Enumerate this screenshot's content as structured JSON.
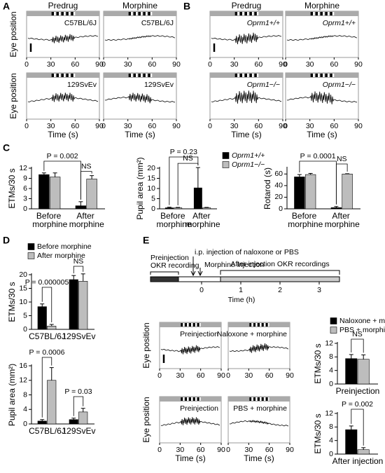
{
  "panels": [
    "A",
    "B",
    "C",
    "D",
    "E"
  ],
  "traces": [
    {
      "headers": [
        "Predrug",
        "Morphine"
      ],
      "labels": [
        "C57BL/6J",
        "C57BL/6J",
        "129SvEv",
        "129SvEv"
      ],
      "ylabel": "Eye position",
      "xlabel": "Time (s)",
      "xlim": [
        0,
        90
      ],
      "xticks": [
        0,
        30,
        60,
        90
      ]
    },
    {
      "headers": [
        "Predrug",
        "Morphine"
      ],
      "labels": [
        "Oprm1+/+",
        "Oprm1+/+",
        "Oprm1−/−",
        "Oprm1−/−"
      ],
      "xlabel": "Time (s)",
      "xlim": [
        0,
        90
      ],
      "xticks": [
        0,
        30,
        60,
        90
      ]
    },
    {
      "labels": [
        "Preinjection",
        "Naloxone + morphine",
        "Preinjection",
        "PBS + morphine"
      ],
      "ylabel": "Eye position",
      "xlabel": "Time (s)",
      "xlim": [
        0,
        90
      ],
      "xticks": [
        0,
        30,
        60,
        90
      ]
    }
  ],
  "timeline": {
    "annotations": [
      "i.p. injection of naloxone or PBS",
      "Morphine injection",
      "Preinjection OKR recording",
      "After injection OKR recordings"
    ],
    "xlabel": "Time (h)",
    "xticks": [
      0,
      1,
      2,
      3
    ]
  },
  "chart_data": [
    {
      "type": "bar",
      "ylabel": "ETMs/30 s",
      "categories": [
        "Before morphine",
        "After morphine"
      ],
      "ylim": [
        0,
        12
      ],
      "yticks": [
        0,
        3,
        6,
        9,
        12
      ],
      "series": [
        {
          "color": "#000000",
          "values": [
            10.1,
            0.9
          ],
          "errors": [
            0.5,
            1.2
          ]
        },
        {
          "color": "#bdbdbd",
          "values": [
            9.4,
            8.8
          ],
          "errors": [
            1.2,
            1.0
          ]
        }
      ],
      "annotations": [
        "P = 0.002",
        "NS"
      ]
    },
    {
      "type": "bar",
      "ylabel": "Pupil area (mm²)",
      "categories": [
        "Before morphine",
        "After morphine"
      ],
      "ylim": [
        0,
        20
      ],
      "yticks": [
        0,
        5,
        10,
        15,
        20
      ],
      "legend": "top-right",
      "series": [
        {
          "name": "Oprm1+/+",
          "color": "#000000",
          "values": [
            0.5,
            10.3
          ],
          "errors": [
            0.3,
            10
          ]
        },
        {
          "name": "Oprm1−/−",
          "color": "#bdbdbd",
          "values": [
            0.5,
            0.5
          ],
          "errors": [
            0.2,
            0.2
          ]
        }
      ],
      "annotations": [
        "P = 0.23",
        "NS"
      ]
    },
    {
      "type": "bar",
      "ylabel": "Rotarod (s)",
      "categories": [
        "Before morphine",
        "After morphine"
      ],
      "ylim": [
        0,
        70
      ],
      "yticks": [
        0,
        20,
        40,
        60
      ],
      "series": [
        {
          "color": "#000000",
          "values": [
            55,
            2
          ],
          "errors": [
            4,
            2
          ]
        },
        {
          "color": "#bdbdbd",
          "values": [
            59,
            60
          ],
          "errors": [
            2,
            0.5
          ]
        }
      ],
      "annotations": [
        "P = 0.0001",
        "NS"
      ]
    },
    {
      "type": "bar",
      "ylabel": "ETMs/30 s",
      "categories": [
        "C57BL/6J",
        "129SvEv"
      ],
      "ylim": [
        0,
        20
      ],
      "yticks": [
        0,
        5,
        10,
        15,
        20
      ],
      "legend": "top-left",
      "series": [
        {
          "name": "Before morphine",
          "color": "#000000",
          "values": [
            8.3,
            18.2
          ],
          "errors": [
            1.0,
            1.5
          ]
        },
        {
          "name": "After morphine",
          "color": "#bdbdbd",
          "values": [
            1.2,
            17.6
          ],
          "errors": [
            0.6,
            2.7
          ]
        }
      ],
      "annotations": [
        "P = 0.000005",
        "NS"
      ]
    },
    {
      "type": "bar",
      "ylabel": "Pupil area (mm²)",
      "categories": [
        "C57BL/6J",
        "129SvEv"
      ],
      "ylim": [
        0,
        16
      ],
      "yticks": [
        0,
        4,
        8,
        12,
        16
      ],
      "series": [
        {
          "color": "#000000",
          "values": [
            0.8,
            1.2
          ],
          "errors": [
            0.4,
            0.4
          ]
        },
        {
          "color": "#bdbdbd",
          "values": [
            12,
            3.3
          ],
          "errors": [
            3.5,
            1.0
          ]
        }
      ],
      "annotations": [
        "P = 0.0006",
        "P = 0.03"
      ]
    },
    {
      "type": "bar",
      "ylabel": "ETMs/30 s",
      "categories": [
        "Preinjection"
      ],
      "ylim": [
        0,
        12
      ],
      "yticks": [
        0,
        4,
        8,
        12
      ],
      "legend": "top-left",
      "series": [
        {
          "name": "Naloxone + morphine",
          "color": "#000000",
          "values": [
            7.5
          ],
          "errors": [
            1.2
          ]
        },
        {
          "name": "PBS + morphine",
          "color": "#bdbdbd",
          "values": [
            7.3
          ],
          "errors": [
            1.3
          ]
        }
      ],
      "annotations": [
        "NS"
      ]
    },
    {
      "type": "bar",
      "ylabel": "ETMs/30 s",
      "categories": [
        "After injection"
      ],
      "ylim": [
        0,
        12
      ],
      "yticks": [
        0,
        4,
        8,
        12
      ],
      "series": [
        {
          "color": "#000000",
          "values": [
            7.2
          ],
          "errors": [
            1.1
          ]
        },
        {
          "color": "#bdbdbd",
          "values": [
            1.3
          ],
          "errors": [
            0.6
          ]
        }
      ],
      "annotations": [
        "P = 0.002"
      ]
    }
  ]
}
